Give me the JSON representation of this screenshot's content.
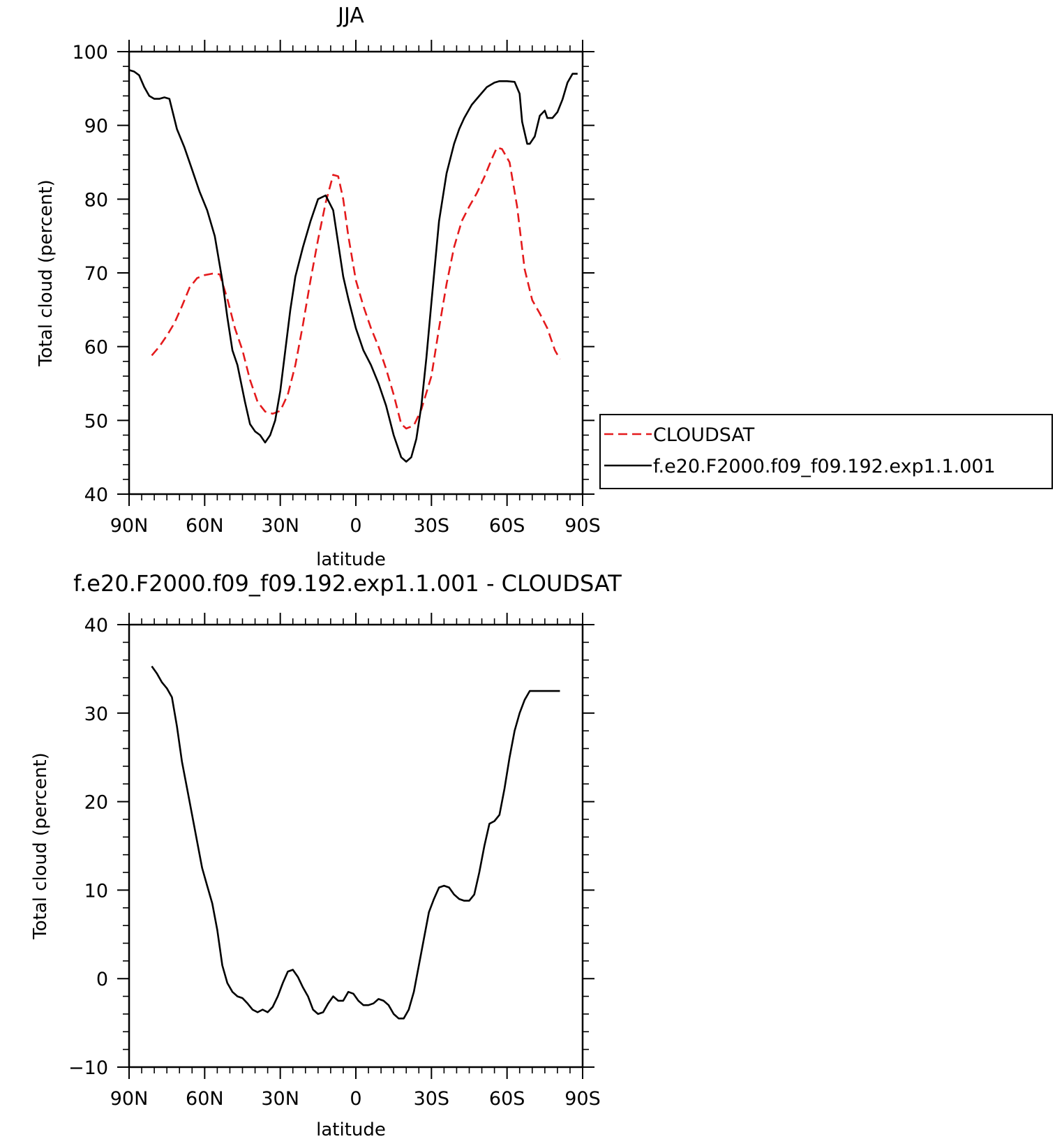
{
  "chart_data": [
    {
      "type": "line",
      "title": "JJA",
      "xlabel": "latitude",
      "ylabel": "Total cloud (percent)",
      "xlim": [
        -90,
        90
      ],
      "ylim": [
        40,
        100
      ],
      "x_ticks": [
        {
          "value": -90,
          "label": "90N"
        },
        {
          "value": -60,
          "label": "60N"
        },
        {
          "value": -30,
          "label": "30N"
        },
        {
          "value": 0,
          "label": "0"
        },
        {
          "value": 30,
          "label": "30S"
        },
        {
          "value": 60,
          "label": "60S"
        },
        {
          "value": 90,
          "label": "90S"
        }
      ],
      "y_ticks": [
        40,
        50,
        60,
        70,
        80,
        90,
        100
      ],
      "grid": false,
      "legend": {
        "placement": "right",
        "entries": [
          {
            "label": "CLOUDSAT",
            "series": 0
          },
          {
            "label": "f.e20.F2000.f09_f09.192.exp1.1.001",
            "series": 1
          }
        ]
      },
      "series": [
        {
          "name": "CLOUDSAT",
          "color": "#e41a1c",
          "dash": "dashed",
          "x": [
            -81,
            -78,
            -75,
            -72,
            -69,
            -66,
            -63,
            -60,
            -57,
            -54,
            -51,
            -48,
            -45,
            -42,
            -39,
            -36,
            -33,
            -30,
            -27,
            -24,
            -21,
            -18,
            -15,
            -12,
            -9,
            -7,
            -5,
            -3,
            0,
            3,
            6,
            9,
            12,
            15,
            18,
            20,
            23,
            26,
            30,
            33,
            36,
            39,
            42,
            45,
            48,
            51,
            54,
            56,
            58,
            61,
            64,
            67,
            70,
            73,
            76,
            79,
            81
          ],
          "y": [
            58.8,
            60.0,
            61.5,
            63.2,
            65.5,
            68.0,
            69.3,
            69.7,
            69.9,
            69.8,
            66.5,
            62.5,
            59.5,
            55.5,
            52.5,
            51.2,
            50.9,
            51.3,
            53.5,
            57.5,
            63.0,
            69.0,
            74.5,
            79.5,
            83.3,
            83.1,
            80.0,
            75.0,
            69.0,
            65.5,
            62.5,
            60.0,
            57.0,
            53.5,
            49.5,
            48.9,
            49.3,
            51.5,
            56.0,
            62.5,
            68.5,
            73.5,
            77.0,
            79.0,
            80.8,
            83.0,
            85.5,
            87.0,
            86.8,
            85.0,
            79.0,
            70.5,
            66.3,
            64.5,
            62.5,
            59.5,
            58.3
          ]
        },
        {
          "name": "f.e20.F2000.f09_f09.192.exp1.1.001",
          "color": "#000000",
          "dash": "solid",
          "x": [
            -90,
            -88,
            -86,
            -84,
            -82,
            -80,
            -78,
            -76,
            -74,
            -71,
            -68,
            -65,
            -62,
            -59,
            -56,
            -53,
            -51,
            -49,
            -47,
            -44,
            -42,
            -40,
            -38,
            -36,
            -34,
            -32,
            -30,
            -28,
            -26,
            -24,
            -21,
            -18,
            -15,
            -12,
            -9,
            -7,
            -5,
            -3,
            0,
            3,
            6,
            9,
            12,
            15,
            18,
            20,
            22,
            24,
            26,
            28,
            30,
            33,
            36,
            39,
            41,
            43,
            46,
            49,
            52,
            55,
            57,
            60,
            63,
            65,
            66,
            68,
            69,
            71,
            73,
            75,
            76,
            78,
            80,
            82,
            84,
            86,
            88
          ],
          "y": [
            97.5,
            97.3,
            96.8,
            95.2,
            94.0,
            93.6,
            93.6,
            93.8,
            93.6,
            89.5,
            87.0,
            84.0,
            81.0,
            78.5,
            75.0,
            69.0,
            64.0,
            59.5,
            57.5,
            52.5,
            49.5,
            48.5,
            48.0,
            47.0,
            48.0,
            50.0,
            54.0,
            59.5,
            65.0,
            69.5,
            73.5,
            77.0,
            80.0,
            80.5,
            78.5,
            74.0,
            69.5,
            66.5,
            62.5,
            59.5,
            57.5,
            55.0,
            52.0,
            48.0,
            45.0,
            44.4,
            45.0,
            47.5,
            52.0,
            58.5,
            66.0,
            77.0,
            83.5,
            87.5,
            89.5,
            91.0,
            92.8,
            94.0,
            95.2,
            95.8,
            96.0,
            96.0,
            95.9,
            94.3,
            90.5,
            87.5,
            87.5,
            88.5,
            91.3,
            92.0,
            91.0,
            91.0,
            91.8,
            93.5,
            95.8,
            97.0,
            97.0
          ]
        }
      ]
    },
    {
      "type": "line",
      "title": "f.e20.F2000.f09_f09.192.exp1.1.001 - CLOUDSAT",
      "xlabel": "latitude",
      "ylabel": "Total cloud (percent)",
      "xlim": [
        -90,
        90
      ],
      "ylim": [
        -10,
        40
      ],
      "x_ticks": [
        {
          "value": -90,
          "label": "90N"
        },
        {
          "value": -60,
          "label": "60N"
        },
        {
          "value": -30,
          "label": "30N"
        },
        {
          "value": 0,
          "label": "0"
        },
        {
          "value": 30,
          "label": "30S"
        },
        {
          "value": 60,
          "label": "60S"
        },
        {
          "value": 90,
          "label": "90S"
        }
      ],
      "y_ticks": [
        -10,
        0,
        10,
        20,
        30,
        40
      ],
      "y_tick_labels": [
        "−10",
        "0",
        "10",
        "20",
        "30",
        "40"
      ],
      "grid": false,
      "series": [
        {
          "color": "#000000",
          "dash": "solid",
          "x": [
            -81,
            -79,
            -77,
            -75,
            -73,
            -71,
            -69,
            -67,
            -65,
            -63,
            -61,
            -59,
            -57,
            -55,
            -53,
            -51,
            -49,
            -47,
            -45,
            -43,
            -41,
            -39,
            -37,
            -35,
            -33,
            -31,
            -29,
            -27,
            -25,
            -23,
            -21,
            -19,
            -17,
            -15,
            -13,
            -11,
            -9,
            -7,
            -5,
            -3,
            -1,
            1,
            3,
            5,
            7,
            9,
            11,
            13,
            15,
            17,
            19,
            21,
            23,
            25,
            27,
            29,
            31,
            33,
            35,
            37,
            39,
            41,
            43,
            45,
            47,
            49,
            51,
            53,
            55,
            57,
            59,
            61,
            63,
            65,
            67,
            69,
            71,
            73,
            75,
            77,
            79,
            81
          ],
          "y": [
            35.3,
            34.5,
            33.5,
            32.8,
            31.8,
            28.5,
            24.5,
            21.5,
            18.5,
            15.5,
            12.5,
            10.5,
            8.5,
            5.5,
            1.5,
            -0.5,
            -1.5,
            -2.0,
            -2.2,
            -2.8,
            -3.5,
            -3.8,
            -3.5,
            -3.8,
            -3.2,
            -2.0,
            -0.5,
            0.8,
            1.0,
            0.2,
            -1.0,
            -2.0,
            -3.5,
            -4.0,
            -3.8,
            -2.8,
            -2.0,
            -2.5,
            -2.5,
            -1.5,
            -1.7,
            -2.5,
            -3.0,
            -3.0,
            -2.8,
            -2.3,
            -2.5,
            -3.0,
            -4.0,
            -4.5,
            -4.5,
            -3.5,
            -1.5,
            1.5,
            4.5,
            7.5,
            9.0,
            10.3,
            10.5,
            10.3,
            9.5,
            9.0,
            8.8,
            8.8,
            9.5,
            12.0,
            15.0,
            17.5,
            17.8,
            18.5,
            21.5,
            25.0,
            28.0,
            30.0,
            31.5,
            32.5,
            32.5,
            32.5,
            32.5,
            32.5,
            32.5,
            32.5
          ]
        }
      ]
    }
  ]
}
